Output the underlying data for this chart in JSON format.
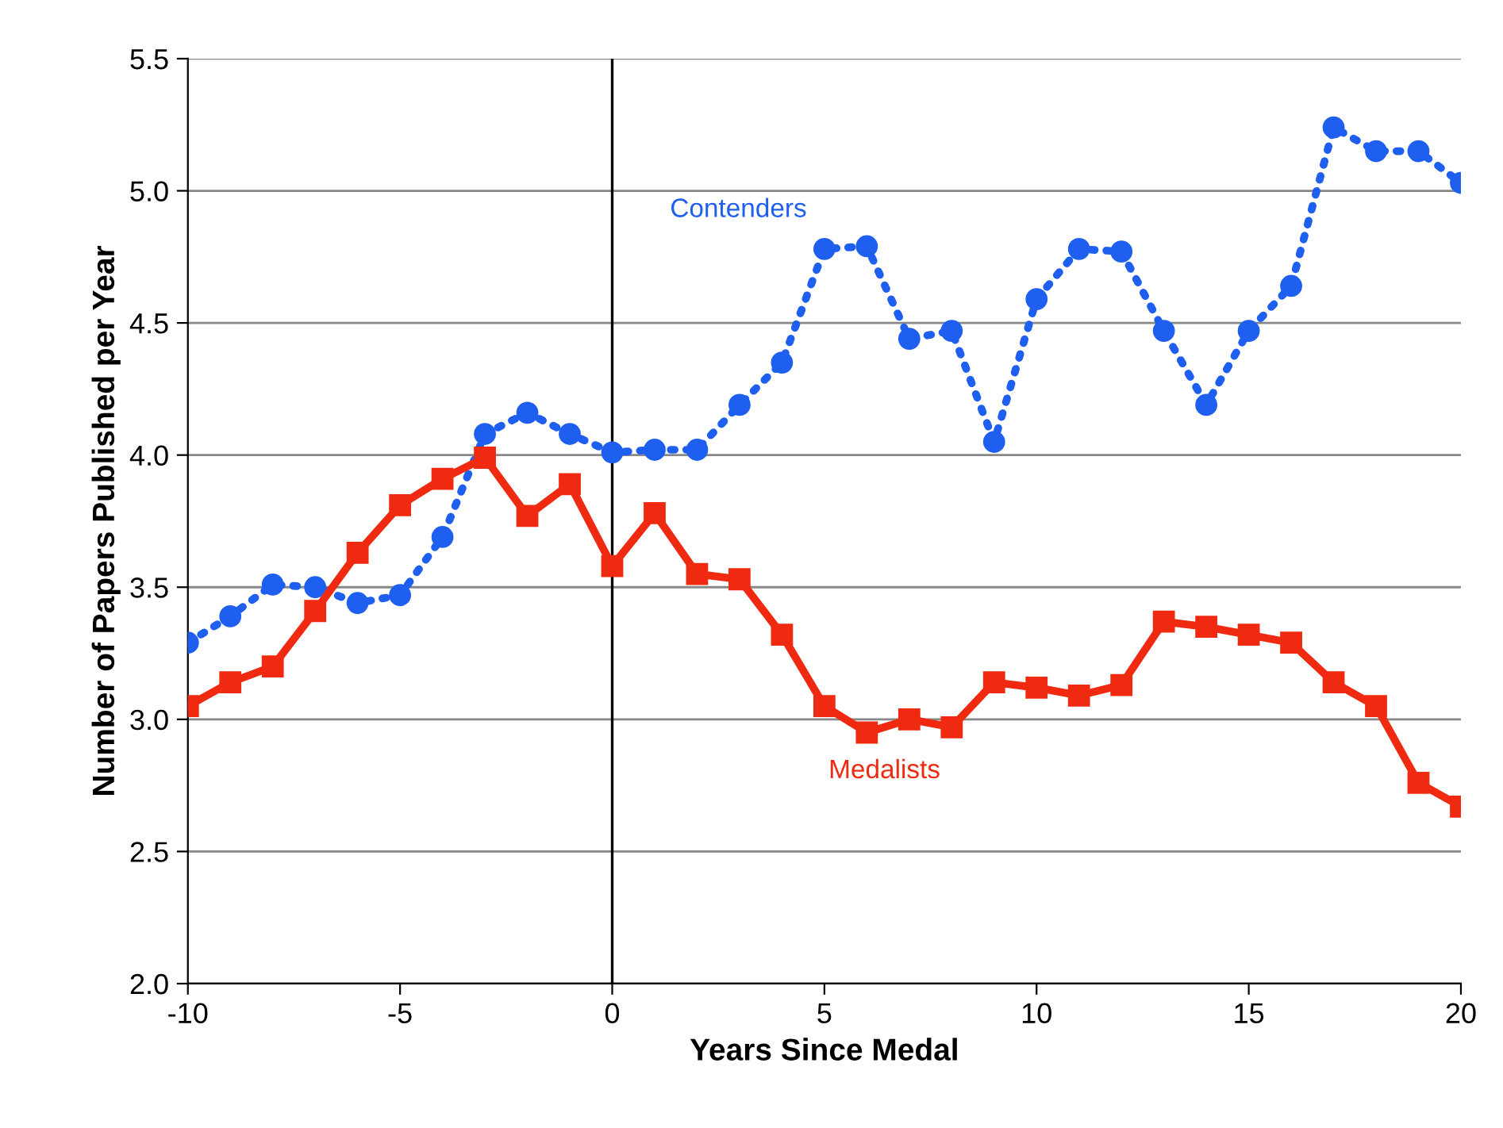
{
  "chart_data": {
    "type": "line",
    "xlabel": "Years Since Medal",
    "ylabel": "Number of Papers Published per Year",
    "x": [
      -10,
      -9,
      -8,
      -7,
      -6,
      -5,
      -4,
      -3,
      -2,
      -1,
      0,
      1,
      2,
      3,
      4,
      5,
      6,
      7,
      8,
      9,
      10,
      11,
      12,
      13,
      14,
      15,
      16,
      17,
      18,
      19,
      20
    ],
    "series": [
      {
        "name": "Contenders",
        "color": "#1f5ff0",
        "line_style": "dotted",
        "marker": "circle",
        "values": [
          3.29,
          3.39,
          3.51,
          3.5,
          3.44,
          3.47,
          3.69,
          4.08,
          4.16,
          4.08,
          4.01,
          4.02,
          4.02,
          4.19,
          4.35,
          4.78,
          4.79,
          4.44,
          4.47,
          4.05,
          4.59,
          4.78,
          4.77,
          4.47,
          4.19,
          4.47,
          4.64,
          5.24,
          5.15,
          5.15,
          5.03
        ]
      },
      {
        "name": "Medalists",
        "color": "#f02a10",
        "line_style": "solid",
        "marker": "square",
        "values": [
          3.05,
          3.14,
          3.2,
          3.41,
          3.63,
          3.81,
          3.91,
          3.99,
          3.77,
          3.89,
          3.58,
          3.78,
          3.55,
          3.53,
          3.32,
          3.05,
          2.95,
          3.0,
          2.97,
          3.14,
          3.12,
          3.09,
          3.13,
          3.37,
          3.35,
          3.32,
          3.29,
          3.14,
          3.05,
          2.76,
          2.67
        ]
      }
    ],
    "xlim": [
      -10,
      20
    ],
    "xticks": [
      -10,
      -5,
      0,
      5,
      10,
      15,
      20
    ],
    "ylim": [
      2.0,
      5.5
    ],
    "yticks": [
      {
        "value": 2.0,
        "label": "2.0"
      },
      {
        "value": 2.5,
        "label": "2.5"
      },
      {
        "value": 3.0,
        "label": "3.0"
      },
      {
        "value": 3.5,
        "label": "3.5"
      },
      {
        "value": 4.0,
        "label": "4.0"
      },
      {
        "value": 4.5,
        "label": "4.5"
      },
      {
        "value": 5.0,
        "label": "5.0"
      },
      {
        "value": 5.5,
        "label": "5.5"
      }
    ],
    "ref_lines": [
      {
        "axis": "x",
        "value": 0,
        "color": "#000000"
      }
    ],
    "grid": "y",
    "legend": false
  }
}
